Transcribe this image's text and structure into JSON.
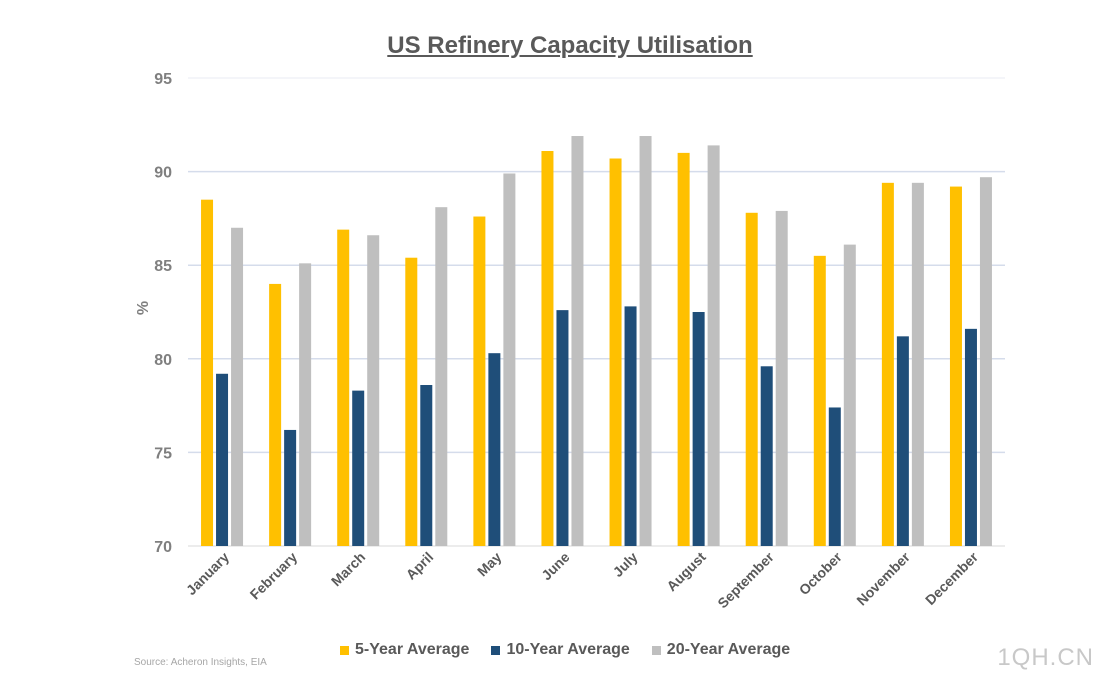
{
  "chart_data": {
    "type": "bar",
    "title": "US Refinery Capacity Utilisation",
    "xlabel": "",
    "ylabel": "%",
    "ylim": [
      70,
      95
    ],
    "yticks": [
      70,
      75,
      80,
      85,
      90,
      95
    ],
    "grid": true,
    "legend_position": "bottom",
    "categories": [
      "January",
      "February",
      "March",
      "April",
      "May",
      "June",
      "July",
      "August",
      "September",
      "October",
      "November",
      "December"
    ],
    "series": [
      {
        "name": "5-Year Average",
        "color": "#ffc000",
        "values": [
          88.5,
          84.0,
          86.9,
          85.4,
          87.6,
          91.1,
          90.7,
          91.0,
          87.8,
          85.5,
          89.4,
          89.2
        ]
      },
      {
        "name": "10-Year Average",
        "color": "#1f4e79",
        "values": [
          79.2,
          76.2,
          78.3,
          78.6,
          80.3,
          82.6,
          82.8,
          82.5,
          79.6,
          77.4,
          81.2,
          81.6
        ]
      },
      {
        "name": "20-Year Average",
        "color": "#bfbfbf",
        "values": [
          87.0,
          85.1,
          86.6,
          88.1,
          89.9,
          91.9,
          91.9,
          91.4,
          87.9,
          86.1,
          89.4,
          89.7
        ]
      }
    ],
    "source": "Source: Acheron Insights, EIA"
  },
  "watermark": "1QH.CN"
}
